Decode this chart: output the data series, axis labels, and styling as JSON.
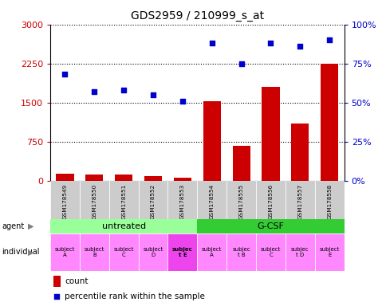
{
  "title": "GDS2959 / 210999_s_at",
  "samples": [
    "GSM178549",
    "GSM178550",
    "GSM178551",
    "GSM178552",
    "GSM178553",
    "GSM178554",
    "GSM178555",
    "GSM178556",
    "GSM178557",
    "GSM178558"
  ],
  "counts": [
    130,
    110,
    120,
    90,
    50,
    1530,
    670,
    1800,
    1100,
    2250
  ],
  "percentiles": [
    68,
    57,
    58,
    55,
    51,
    88,
    75,
    88,
    86,
    90
  ],
  "count_ylim": [
    0,
    3000
  ],
  "count_yticks": [
    0,
    750,
    1500,
    2250,
    3000
  ],
  "count_yticklabels": [
    "0",
    "750",
    "1500",
    "2250",
    "3000"
  ],
  "percentile_ylim": [
    0,
    100
  ],
  "percentile_yticks": [
    0,
    25,
    50,
    75,
    100
  ],
  "percentile_yticklabels": [
    "0%",
    "25%",
    "50%",
    "75%",
    "100%"
  ],
  "bar_color": "#cc0000",
  "dot_color": "#0000cc",
  "agent_groups": [
    {
      "label": "untreated",
      "start": 0,
      "end": 4,
      "color": "#99ff99"
    },
    {
      "label": "G-CSF",
      "start": 5,
      "end": 9,
      "color": "#33cc33"
    }
  ],
  "individuals": [
    "subject\nA",
    "subject\nB",
    "subject\nC",
    "subject\nD",
    "subjec\nt E",
    "subject\nA",
    "subjec\nt B",
    "subject\nC",
    "subjec\nt D",
    "subject\nE"
  ],
  "individual_highlight_indices": [
    4
  ],
  "individual_color": "#ff88ff",
  "individual_highlight_color": "#ee44ee",
  "xticklabel_bg": "#cccccc",
  "legend_count_color": "#cc0000",
  "legend_dot_color": "#0000cc",
  "count_ytick_color": "#cc0000",
  "percentile_ytick_color": "#0000cc"
}
